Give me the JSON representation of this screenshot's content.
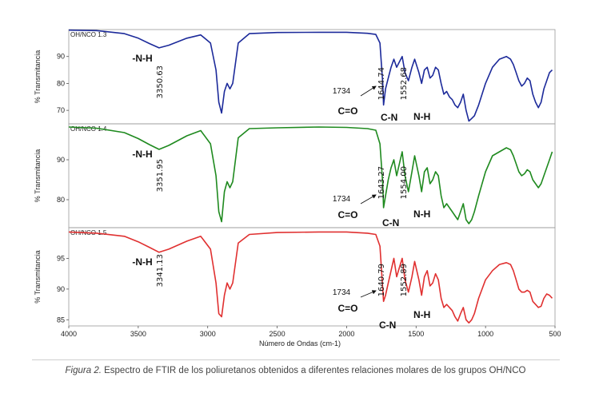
{
  "chart_data": {
    "type": "line",
    "xlabel": "Número de Ondas (cm-1)",
    "ylabel": "% Transmitancia",
    "xlim": [
      4000,
      500
    ],
    "x_ticks": [
      "4000",
      "3500",
      "3000",
      "2500",
      "2000",
      "1500",
      "1000",
      "500"
    ],
    "panels": [
      {
        "title": "OH/NCO 1.3",
        "color": "#1c2a9a",
        "ylim": [
          65,
          100
        ],
        "y_ticks": [
          "70",
          "80",
          "90"
        ],
        "y_tick_values": [
          70,
          80,
          90
        ],
        "annotations": {
          "nh": "-N-H",
          "nh_peak": "3350.63",
          "co_wn": "1734",
          "co": "C=O",
          "p1": "1644.74",
          "p2": "1552.68",
          "cn": "C-N",
          "nh2": "N-H"
        },
        "series": {
          "x": [
            4000,
            3800,
            3600,
            3500,
            3420,
            3350,
            3280,
            3150,
            3050,
            2980,
            2940,
            2920,
            2900,
            2880,
            2860,
            2840,
            2820,
            2780,
            2700,
            2500,
            2200,
            2000,
            1850,
            1790,
            1760,
            1740,
            1734,
            1720,
            1700,
            1680,
            1660,
            1640,
            1620,
            1600,
            1580,
            1555,
            1530,
            1510,
            1480,
            1460,
            1440,
            1420,
            1400,
            1380,
            1360,
            1340,
            1320,
            1300,
            1280,
            1260,
            1240,
            1220,
            1200,
            1180,
            1160,
            1140,
            1120,
            1100,
            1080,
            1050,
            1000,
            950,
            900,
            850,
            820,
            800,
            780,
            760,
            740,
            720,
            700,
            680,
            660,
            640,
            620,
            600,
            580,
            560,
            540,
            520
          ],
          "y": [
            99.8,
            99.6,
            98.5,
            96.8,
            94.8,
            93.2,
            94.2,
            96.8,
            98,
            95,
            85,
            73,
            69,
            77,
            80,
            78,
            80,
            95,
            98.5,
            98.9,
            99,
            99,
            98.6,
            98.2,
            95,
            80,
            72,
            78,
            82,
            86,
            89,
            86,
            88,
            90,
            84,
            81,
            86,
            89,
            84,
            80,
            85,
            86,
            82,
            83,
            86,
            85,
            80,
            76,
            77,
            75,
            74,
            72,
            71,
            73,
            76,
            70,
            66,
            67,
            68,
            72,
            80,
            86,
            89,
            90,
            89,
            87,
            84,
            81,
            79,
            80,
            82,
            81,
            76,
            73,
            71,
            73,
            78,
            81,
            84,
            85
          ]
        }
      },
      {
        "title": "OH/NCO 1.4",
        "color": "#1f8a1f",
        "ylim": [
          73,
          99
        ],
        "y_ticks": [
          "80",
          "90"
        ],
        "y_tick_values": [
          80,
          90
        ],
        "annotations": {
          "nh": "-N-H",
          "nh_peak": "3351.95",
          "co_wn": "1734",
          "co": "C=O",
          "p1": "1643.27",
          "p2": "1554.00",
          "cn": "C-N",
          "nh2": "N-H"
        },
        "series": {
          "x": [
            4000,
            3800,
            3600,
            3500,
            3420,
            3350,
            3280,
            3150,
            3050,
            2980,
            2940,
            2920,
            2900,
            2880,
            2860,
            2840,
            2820,
            2780,
            2700,
            2500,
            2200,
            2000,
            1850,
            1790,
            1760,
            1740,
            1734,
            1720,
            1700,
            1680,
            1660,
            1640,
            1620,
            1600,
            1580,
            1555,
            1530,
            1510,
            1480,
            1460,
            1440,
            1420,
            1400,
            1380,
            1360,
            1340,
            1320,
            1300,
            1280,
            1260,
            1240,
            1220,
            1200,
            1180,
            1160,
            1140,
            1120,
            1100,
            1080,
            1050,
            1000,
            950,
            900,
            850,
            820,
            800,
            780,
            760,
            740,
            720,
            700,
            680,
            660,
            640,
            620,
            600,
            580,
            560,
            540,
            520
          ],
          "y": [
            98.2,
            97.9,
            96.8,
            95.3,
            93.8,
            92.6,
            93.6,
            96,
            97.3,
            94,
            86,
            77,
            74.5,
            82,
            84.5,
            83,
            84.5,
            95.5,
            97.8,
            98,
            98.2,
            98.1,
            97.8,
            97.4,
            94,
            84,
            78,
            81,
            85,
            88,
            90,
            86,
            89,
            92,
            86,
            82,
            87,
            91,
            86,
            82,
            87,
            88,
            84,
            85,
            87,
            86,
            81,
            78,
            79,
            78,
            77,
            76,
            75,
            77,
            79,
            75,
            74,
            75,
            77,
            81,
            87,
            91,
            92,
            93,
            92.5,
            91,
            89,
            87,
            86,
            86.5,
            87.5,
            87,
            85,
            84,
            83,
            84,
            86,
            88,
            90,
            92
          ]
        }
      },
      {
        "title": "OH/NCO 1.5",
        "color": "#e03030",
        "ylim": [
          84,
          100
        ],
        "y_ticks": [
          "85",
          "90",
          "95"
        ],
        "y_tick_values": [
          85,
          90,
          95
        ],
        "annotations": {
          "nh": "-N-H",
          "nh_peak": "3341.13",
          "co_wn": "1734",
          "co": "C=O",
          "p1": "1640.79",
          "p2": "1552.89",
          "cn": "C-N",
          "nh2": "N-H"
        },
        "series": {
          "x": [
            4000,
            3800,
            3600,
            3500,
            3420,
            3350,
            3280,
            3150,
            3050,
            2980,
            2940,
            2920,
            2900,
            2880,
            2860,
            2840,
            2820,
            2780,
            2700,
            2500,
            2200,
            2000,
            1850,
            1790,
            1760,
            1740,
            1734,
            1720,
            1700,
            1680,
            1660,
            1640,
            1620,
            1600,
            1580,
            1555,
            1530,
            1510,
            1480,
            1460,
            1440,
            1420,
            1400,
            1380,
            1360,
            1340,
            1320,
            1300,
            1280,
            1260,
            1240,
            1220,
            1200,
            1180,
            1160,
            1140,
            1120,
            1100,
            1080,
            1050,
            1000,
            950,
            900,
            850,
            820,
            800,
            780,
            760,
            740,
            720,
            700,
            680,
            660,
            640,
            620,
            600,
            580,
            560,
            540,
            520
          ],
          "y": [
            99.3,
            99.1,
            98.6,
            97.7,
            96.8,
            96,
            96.5,
            97.8,
            98.6,
            96.5,
            91,
            86,
            85.5,
            89,
            91,
            90,
            91,
            97.5,
            98.9,
            99.2,
            99.3,
            99.3,
            99.1,
            98.9,
            97,
            90,
            88,
            89,
            91,
            93,
            95,
            92,
            93.5,
            95,
            91.5,
            89.5,
            92,
            94.5,
            91.5,
            89,
            92,
            93,
            90.5,
            91,
            92.5,
            91.5,
            88.5,
            87,
            87.5,
            87,
            86.5,
            85.5,
            84.8,
            86,
            87,
            85,
            84.5,
            85,
            86,
            88.5,
            91.5,
            93,
            94,
            94.3,
            94,
            93,
            91.5,
            90,
            89.5,
            89.5,
            89.8,
            89.5,
            88,
            87.5,
            87,
            87.2,
            88.5,
            89.2,
            89,
            88.5
          ]
        }
      }
    ]
  },
  "caption": {
    "label": "Figura 2.",
    "text": " Espectro de FTIR de los poliuretanos obtenidos a diferentes relaciones molares de los grupos OH/NCO"
  }
}
